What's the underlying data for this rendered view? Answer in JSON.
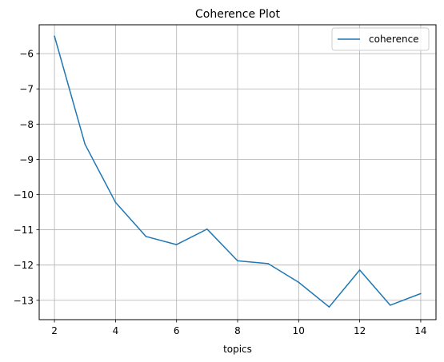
{
  "chart_data": {
    "type": "line",
    "title": "Coherence Plot",
    "xlabel": "topics",
    "ylabel": "",
    "xlim": [
      1.5,
      14.5
    ],
    "ylim": [
      -13.55,
      -5.18
    ],
    "xticks": [
      2,
      4,
      6,
      8,
      10,
      12,
      14
    ],
    "yticks": [
      -6,
      -7,
      -8,
      -9,
      -10,
      -11,
      -12,
      -13
    ],
    "ytick_labels": [
      "−6",
      "−7",
      "−8",
      "−9",
      "−10",
      "−11",
      "−12",
      "−13"
    ],
    "grid": true,
    "legend_position": "top-right",
    "series": [
      {
        "name": "coherence",
        "color": "#1f77b4",
        "x": [
          2,
          3,
          4,
          5,
          6,
          7,
          8,
          9,
          10,
          11,
          12,
          13,
          14
        ],
        "y": [
          -5.5,
          -8.57,
          -10.22,
          -11.19,
          -11.42,
          -10.98,
          -11.88,
          -11.96,
          -12.49,
          -13.19,
          -12.14,
          -13.14,
          -12.81
        ]
      }
    ]
  }
}
